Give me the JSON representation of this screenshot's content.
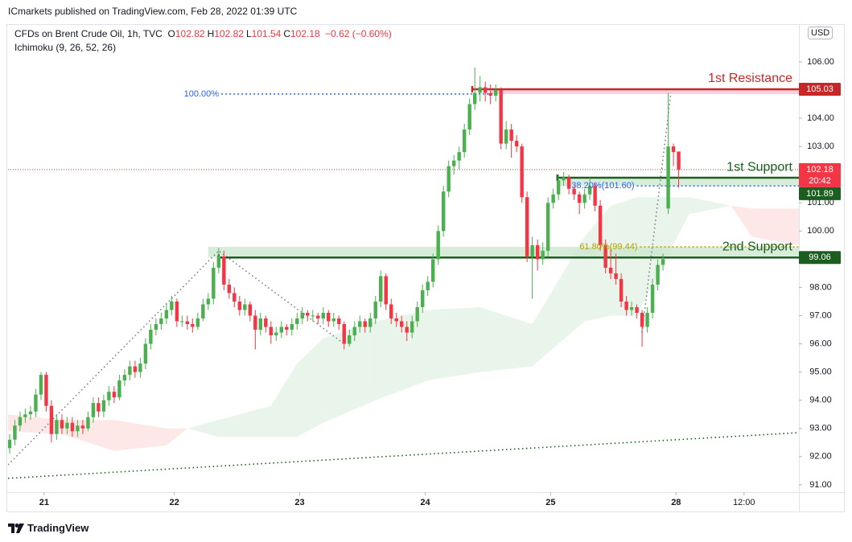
{
  "chart_data": {
    "type": "candlestick",
    "publisher": "ICmarkets published on TradingView.com, Feb 28, 2022 01:39 UTC",
    "symbol": "CFDs on Brent Crude Oil, 1h, TVC",
    "ohlc_legend": [
      {
        "label": "O",
        "value": 102.82
      },
      {
        "label": "H",
        "value": 102.82
      },
      {
        "label": "L",
        "value": 101.54
      },
      {
        "label": "C",
        "value": 102.18
      }
    ],
    "change": "−0.62 (−0.60%)",
    "indicator": "Ichimoku (9, 26, 52, 26)",
    "currency": "USD",
    "watermark": "TradingView",
    "up_color": "#4caf50",
    "down_color": "#f23645",
    "xlim": [
      -0.3,
      151
    ],
    "xticks": [
      {
        "value": 6.6,
        "label": "21"
      },
      {
        "value": 31.5,
        "label": "22"
      },
      {
        "value": 55.5,
        "label": "23"
      },
      {
        "value": 79.5,
        "label": "24"
      },
      {
        "value": 103.5,
        "label": "25"
      },
      {
        "value": 127.5,
        "label": "28"
      },
      {
        "value": 140.5,
        "label": "12:00"
      }
    ],
    "ylim": [
      90.74,
      107.31
    ],
    "yticks": [
      {
        "value": 91,
        "label": "91.00"
      },
      {
        "value": 92,
        "label": "92.00"
      },
      {
        "value": 93,
        "label": "93.00"
      },
      {
        "value": 94,
        "label": "94.00"
      },
      {
        "value": 95,
        "label": "95.00"
      },
      {
        "value": 96,
        "label": "96.00"
      },
      {
        "value": 97,
        "label": "97.00"
      },
      {
        "value": 98,
        "label": "98.00"
      },
      {
        "value": 100,
        "label": "100.00"
      },
      {
        "value": 101,
        "label": "101.00"
      },
      {
        "value": 103,
        "label": "103.00"
      },
      {
        "value": 104,
        "label": "104.00"
      },
      {
        "value": 106,
        "label": "106.00"
      }
    ],
    "candles": [
      [
        92.3,
        92.8,
        92.1,
        92.6
      ],
      [
        92.6,
        93.3,
        92.4,
        93.1
      ],
      [
        93.1,
        93.6,
        92.9,
        93.4
      ],
      [
        93.4,
        93.7,
        93.2,
        93.5
      ],
      [
        93.5,
        93.8,
        93.3,
        93.6
      ],
      [
        93.6,
        94.4,
        93.4,
        94.2
      ],
      [
        94.2,
        95.0,
        94.0,
        94.9
      ],
      [
        94.9,
        95.0,
        93.6,
        93.8
      ],
      [
        93.8,
        94.0,
        92.5,
        92.8
      ],
      [
        92.8,
        93.5,
        92.6,
        93.3
      ],
      [
        93.3,
        93.5,
        92.8,
        93.0
      ],
      [
        93.0,
        93.4,
        92.8,
        93.2
      ],
      [
        93.2,
        93.4,
        92.7,
        92.9
      ],
      [
        92.9,
        93.3,
        92.7,
        93.1
      ],
      [
        93.1,
        93.3,
        92.8,
        93.0
      ],
      [
        93.0,
        93.6,
        92.9,
        93.4
      ],
      [
        93.4,
        94.1,
        93.2,
        93.9
      ],
      [
        93.9,
        94.1,
        93.4,
        93.6
      ],
      [
        93.6,
        94.2,
        93.4,
        94.0
      ],
      [
        94.0,
        94.5,
        93.8,
        94.3
      ],
      [
        94.3,
        94.5,
        93.9,
        94.1
      ],
      [
        94.1,
        94.9,
        94.0,
        94.7
      ],
      [
        94.7,
        95.1,
        94.5,
        94.9
      ],
      [
        94.9,
        95.4,
        94.7,
        95.2
      ],
      [
        95.2,
        95.4,
        94.8,
        95.0
      ],
      [
        95.0,
        95.5,
        94.8,
        95.3
      ],
      [
        95.3,
        96.2,
        95.1,
        96.0
      ],
      [
        96.0,
        96.7,
        95.8,
        96.5
      ],
      [
        96.5,
        96.9,
        96.3,
        96.7
      ],
      [
        96.7,
        97.1,
        96.5,
        96.9
      ],
      [
        96.9,
        97.4,
        96.7,
        97.2
      ],
      [
        97.2,
        97.7,
        97.0,
        97.5
      ],
      [
        97.5,
        97.6,
        96.6,
        96.8
      ],
      [
        96.8,
        97.0,
        96.6,
        96.8
      ],
      [
        96.8,
        97.0,
        96.5,
        96.7
      ],
      [
        96.7,
        96.9,
        96.4,
        96.6
      ],
      [
        96.6,
        97.1,
        96.5,
        96.9
      ],
      [
        96.9,
        97.6,
        96.8,
        97.4
      ],
      [
        97.4,
        97.8,
        97.2,
        97.6
      ],
      [
        97.6,
        98.9,
        97.4,
        98.7
      ],
      [
        98.7,
        99.4,
        98.5,
        99.1
      ],
      [
        99.1,
        99.3,
        97.9,
        98.1
      ],
      [
        98.1,
        98.3,
        97.6,
        97.8
      ],
      [
        97.8,
        98.0,
        97.3,
        97.5
      ],
      [
        97.5,
        97.7,
        97.0,
        97.2
      ],
      [
        97.2,
        97.6,
        97.0,
        97.4
      ],
      [
        97.4,
        97.5,
        96.8,
        97.0
      ],
      [
        97.0,
        97.2,
        95.8,
        96.5
      ],
      [
        96.5,
        97.1,
        96.3,
        96.9
      ],
      [
        96.9,
        97.0,
        96.4,
        96.6
      ],
      [
        96.6,
        96.8,
        96.0,
        96.3
      ],
      [
        96.3,
        96.6,
        96.1,
        96.4
      ],
      [
        96.4,
        96.8,
        96.2,
        96.6
      ],
      [
        96.6,
        96.7,
        96.3,
        96.5
      ],
      [
        96.5,
        96.9,
        96.3,
        96.7
      ],
      [
        96.7,
        97.1,
        96.5,
        96.9
      ],
      [
        96.9,
        97.3,
        96.7,
        97.1
      ],
      [
        97.1,
        97.2,
        96.8,
        97.0
      ],
      [
        97.0,
        97.2,
        96.8,
        97.0
      ],
      [
        97.0,
        97.1,
        96.7,
        96.9
      ],
      [
        96.9,
        97.3,
        96.7,
        97.1
      ],
      [
        97.1,
        97.2,
        96.6,
        96.8
      ],
      [
        96.8,
        97.1,
        96.6,
        96.9
      ],
      [
        96.9,
        97.0,
        96.5,
        96.7
      ],
      [
        96.7,
        96.8,
        95.8,
        96.0
      ],
      [
        96.0,
        96.5,
        95.9,
        96.3
      ],
      [
        96.3,
        96.8,
        96.1,
        96.6
      ],
      [
        96.6,
        97.0,
        96.4,
        96.8
      ],
      [
        96.8,
        96.9,
        96.4,
        96.6
      ],
      [
        96.6,
        97.1,
        96.4,
        96.9
      ],
      [
        96.9,
        97.7,
        96.7,
        97.5
      ],
      [
        97.5,
        98.6,
        97.3,
        98.4
      ],
      [
        98.4,
        98.5,
        97.2,
        97.4
      ],
      [
        97.4,
        97.6,
        96.7,
        96.9
      ],
      [
        96.9,
        97.1,
        96.6,
        96.8
      ],
      [
        96.8,
        97.0,
        96.4,
        96.6
      ],
      [
        96.6,
        96.8,
        96.1,
        96.4
      ],
      [
        96.4,
        97.0,
        96.2,
        96.8
      ],
      [
        96.8,
        97.5,
        96.6,
        97.3
      ],
      [
        97.3,
        98.1,
        97.1,
        97.9
      ],
      [
        97.9,
        98.4,
        97.7,
        98.2
      ],
      [
        98.2,
        99.2,
        98.0,
        99.0
      ],
      [
        99.0,
        100.2,
        98.8,
        100.0
      ],
      [
        100.0,
        101.6,
        99.8,
        101.4
      ],
      [
        101.4,
        102.5,
        101.2,
        102.3
      ],
      [
        102.3,
        102.7,
        102.0,
        102.5
      ],
      [
        102.5,
        103.0,
        102.2,
        102.8
      ],
      [
        102.8,
        103.8,
        102.6,
        103.6
      ],
      [
        103.6,
        104.7,
        103.4,
        104.5
      ],
      [
        104.5,
        105.8,
        104.3,
        104.9
      ],
      [
        104.9,
        105.5,
        104.6,
        105.1
      ],
      [
        105.1,
        105.3,
        104.6,
        104.9
      ],
      [
        104.9,
        105.2,
        104.5,
        104.8
      ],
      [
        104.8,
        105.2,
        104.6,
        105.0
      ],
      [
        105.0,
        105.1,
        102.9,
        103.1
      ],
      [
        103.1,
        103.9,
        102.9,
        103.6
      ],
      [
        103.6,
        103.8,
        102.6,
        103.2
      ],
      [
        103.2,
        103.4,
        102.8,
        103.0
      ],
      [
        103.0,
        103.1,
        101.0,
        101.2
      ],
      [
        101.2,
        101.4,
        98.9,
        99.1
      ],
      [
        99.1,
        99.8,
        97.6,
        99.5
      ],
      [
        99.5,
        99.7,
        98.6,
        99.0
      ],
      [
        99.0,
        99.6,
        98.8,
        99.3
      ],
      [
        99.3,
        101.2,
        99.1,
        101.0
      ],
      [
        101.0,
        101.5,
        100.8,
        101.3
      ],
      [
        101.3,
        102.0,
        101.1,
        101.8
      ],
      [
        101.8,
        102.1,
        101.6,
        101.9
      ],
      [
        101.9,
        102.0,
        101.3,
        101.5
      ],
      [
        101.5,
        101.6,
        101.1,
        101.3
      ],
      [
        101.3,
        101.4,
        100.6,
        101.0
      ],
      [
        101.0,
        101.5,
        100.8,
        101.3
      ],
      [
        101.3,
        101.9,
        101.1,
        101.6
      ],
      [
        101.6,
        101.7,
        100.7,
        100.9
      ],
      [
        100.9,
        101.1,
        99.3,
        99.5
      ],
      [
        99.5,
        99.7,
        98.5,
        98.7
      ],
      [
        98.7,
        99.4,
        98.3,
        98.5
      ],
      [
        98.5,
        99.2,
        98.1,
        98.3
      ],
      [
        98.3,
        98.5,
        97.3,
        97.5
      ],
      [
        97.5,
        97.7,
        97.0,
        97.2
      ],
      [
        97.2,
        97.5,
        97.0,
        97.3
      ],
      [
        97.3,
        97.4,
        96.9,
        97.1
      ],
      [
        97.1,
        97.2,
        95.9,
        96.6
      ],
      [
        96.6,
        97.3,
        96.4,
        97.1
      ],
      [
        97.1,
        98.3,
        96.9,
        98.1
      ],
      [
        98.1,
        99.0,
        97.9,
        98.8
      ],
      [
        98.8,
        99.2,
        98.6,
        99.0
      ],
      [
        100.8,
        104.9,
        100.6,
        103.0
      ],
      [
        103.0,
        103.1,
        102.3,
        102.8
      ],
      [
        102.82,
        102.82,
        101.54,
        102.18
      ]
    ],
    "cloud": {
      "x": [
        -0.3,
        10,
        20,
        30,
        34,
        40,
        50,
        55,
        60,
        70,
        80,
        90,
        100,
        110,
        115,
        120,
        130,
        138,
        142,
        151
      ],
      "span_a": [
        92.9,
        92.8,
        92.2,
        92.4,
        93.0,
        93.3,
        93.8,
        95.3,
        96.2,
        96.8,
        97.2,
        97.3,
        96.7,
        99.8,
        100.9,
        101.2,
        101.2,
        100.9,
        99.8,
        99.5
      ],
      "span_b": [
        93.5,
        93.3,
        93.3,
        93.0,
        93.0,
        92.7,
        92.7,
        92.7,
        93.2,
        94.0,
        94.7,
        95.0,
        95.2,
        96.8,
        97.0,
        97.0,
        100.6,
        100.9,
        100.8,
        100.8
      ],
      "up_color": "#4caf50",
      "down_color": "#f44336"
    },
    "trend_lines": [
      {
        "x": [
          -0.3,
          151
        ],
        "y": [
          91.23,
          92.85
        ],
        "color": "#1b5e20"
      },
      {
        "x": [
          -0.3,
          40,
          64
        ],
        "y": [
          91.71,
          99.3,
          96.0
        ],
        "color": "#787b86"
      },
      {
        "x": [
          121,
          126.5
        ],
        "y": [
          96.4,
          104.9
        ],
        "color": "#787b86"
      }
    ],
    "fib_levels": [
      {
        "label": "100.00%",
        "value": 104.86,
        "from": 40.5,
        "to": 93.6,
        "color": "#2962ff"
      },
      {
        "label": "38.20%(101.60)",
        "value": 101.6,
        "from": 120,
        "to": 151,
        "color": "#2962ff"
      },
      {
        "label": "61.80%(99.44)",
        "value": 99.44,
        "from": 120.6,
        "to": 151,
        "color": "#b8a000"
      }
    ],
    "levels": [
      {
        "name": "1st Resistance",
        "value": 105.03,
        "from": 88.5,
        "zone": [
          104.86,
          105.03
        ],
        "zone_from": 92,
        "color": "#c62828",
        "zone_color": "#f8bbd0"
      },
      {
        "name": "1st Support",
        "value": 101.89,
        "from": 104.8,
        "zone": [
          101.6,
          101.89
        ],
        "zone_from": 104.8,
        "color": "#1b5e20",
        "zone_color": "#c8e6c9"
      },
      {
        "name": "2nd Support",
        "value": 99.06,
        "from": 40,
        "zone": [
          99.06,
          99.44
        ],
        "zone_from": 38,
        "color": "#1b5e20",
        "zone_color": "#c8e6c9"
      }
    ],
    "last_price": {
      "value": 102.18,
      "countdown": "20:42",
      "color": "#f23645"
    }
  }
}
